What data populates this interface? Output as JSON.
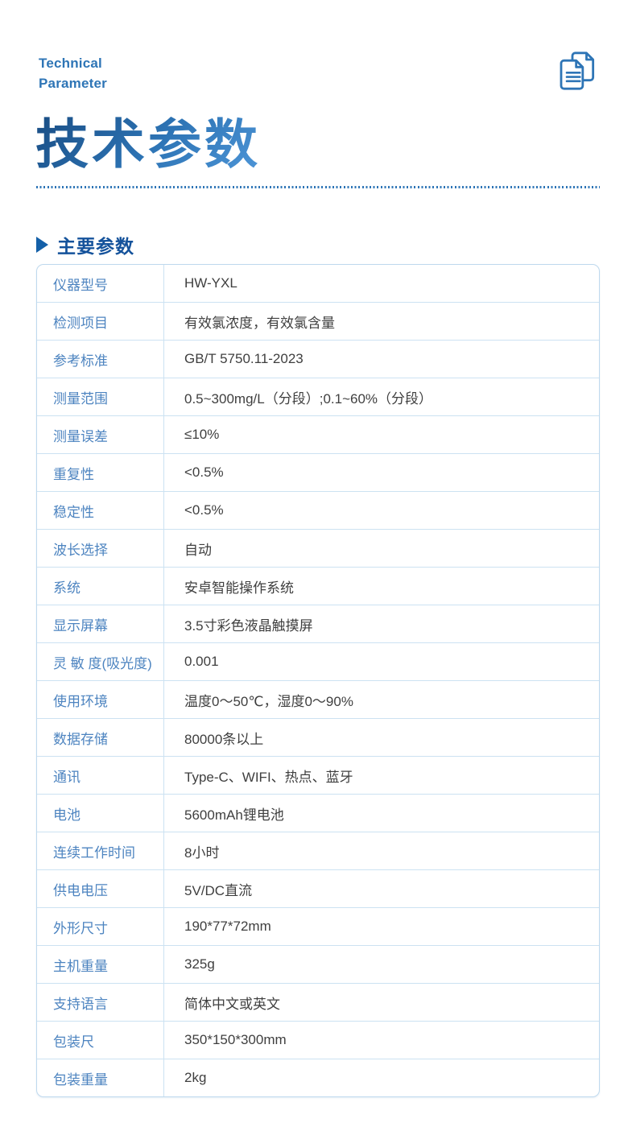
{
  "header": {
    "eyebrow_line1": "Technical",
    "eyebrow_line2": "Parameter",
    "title": "技术参数",
    "icon": "documents-copy-icon"
  },
  "section": {
    "title": "主要参数"
  },
  "colors": {
    "accent_blue": "#2e75b6",
    "section_blue": "#14529b",
    "title_gradient_start": "#17497f",
    "title_gradient_end": "#4f97d9",
    "table_border": "#cce2f2",
    "label_blue": "#4d84c0",
    "value_gray": "#3f3f3f"
  },
  "table": {
    "rows": [
      {
        "label": "仪器型号",
        "value": "HW-YXL"
      },
      {
        "label": "检测项目",
        "value": "有效氯浓度，有效氯含量"
      },
      {
        "label": "参考标准",
        "value": "GB/T 5750.11-2023"
      },
      {
        "label": "测量范围",
        "value": "0.5~300mg/L（分段）;0.1~60%（分段）"
      },
      {
        "label": "测量误差",
        "value": "≤10%"
      },
      {
        "label": "重复性",
        "value": "<0.5%"
      },
      {
        "label": "稳定性",
        "value": "<0.5%"
      },
      {
        "label": "波长选择",
        "value": "自动"
      },
      {
        "label": "系统",
        "value": "安卓智能操作系统"
      },
      {
        "label": "显示屏幕",
        "value": "3.5寸彩色液晶触摸屏"
      },
      {
        "label": "灵 敏 度(吸光度)",
        "value": "0.001"
      },
      {
        "label": "使用环境",
        "value": "温度0～50℃，湿度0～90%"
      },
      {
        "label": "数据存储",
        "value": "80000条以上"
      },
      {
        "label": "通讯",
        "value": "Type-C、WIFI、热点、蓝牙"
      },
      {
        "label": "电池",
        "value": "5600mAh锂电池"
      },
      {
        "label": "连续工作时间",
        "value": "8小时"
      },
      {
        "label": "供电电压",
        "value": "5V/DC直流"
      },
      {
        "label": "外形尺寸",
        "value": "190*77*72mm"
      },
      {
        "label": "主机重量",
        "value": "325g"
      },
      {
        "label": "支持语言",
        "value": "简体中文或英文"
      },
      {
        "label": "包装尺",
        "value": "350*150*300mm"
      },
      {
        "label": "包装重量",
        "value": "2kg"
      }
    ]
  }
}
